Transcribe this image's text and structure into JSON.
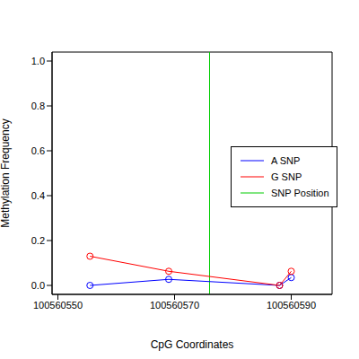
{
  "chart_data": {
    "type": "line",
    "x_label": "CpG Coordinates",
    "y_label": "Methylation Frequency",
    "xlim": [
      100560549,
      100560597
    ],
    "xticks": [
      100560550,
      100560570,
      100560590
    ],
    "ylim": [
      -0.04,
      1.04
    ],
    "yticks": [
      {
        "value": 0,
        "label": "0.0"
      },
      {
        "value": 0.2,
        "label": "0.2"
      },
      {
        "value": 0.4,
        "label": "0.4"
      },
      {
        "value": 0.6,
        "label": "0.6"
      },
      {
        "value": 0.8,
        "label": "0.8"
      },
      {
        "value": 1,
        "label": "1.0"
      }
    ],
    "legend": "right",
    "marker": "open_circle",
    "line_style": "solid",
    "series": [
      {
        "name": "A SNP",
        "color": "#0000ff",
        "x": [
          100560555.5,
          100560569,
          100560588,
          100560590
        ],
        "values": [
          0,
          0.027,
          0,
          0.035
        ]
      },
      {
        "name": "G SNP",
        "color": "#ff0000",
        "x": [
          100560555.5,
          100560569,
          100560588,
          100560590
        ],
        "values": [
          0.13,
          0.063,
          0,
          0.063
        ]
      }
    ],
    "vlines": [
      {
        "x": 100560576,
        "name": "SNP Position",
        "color": "#00cc00"
      }
    ]
  }
}
